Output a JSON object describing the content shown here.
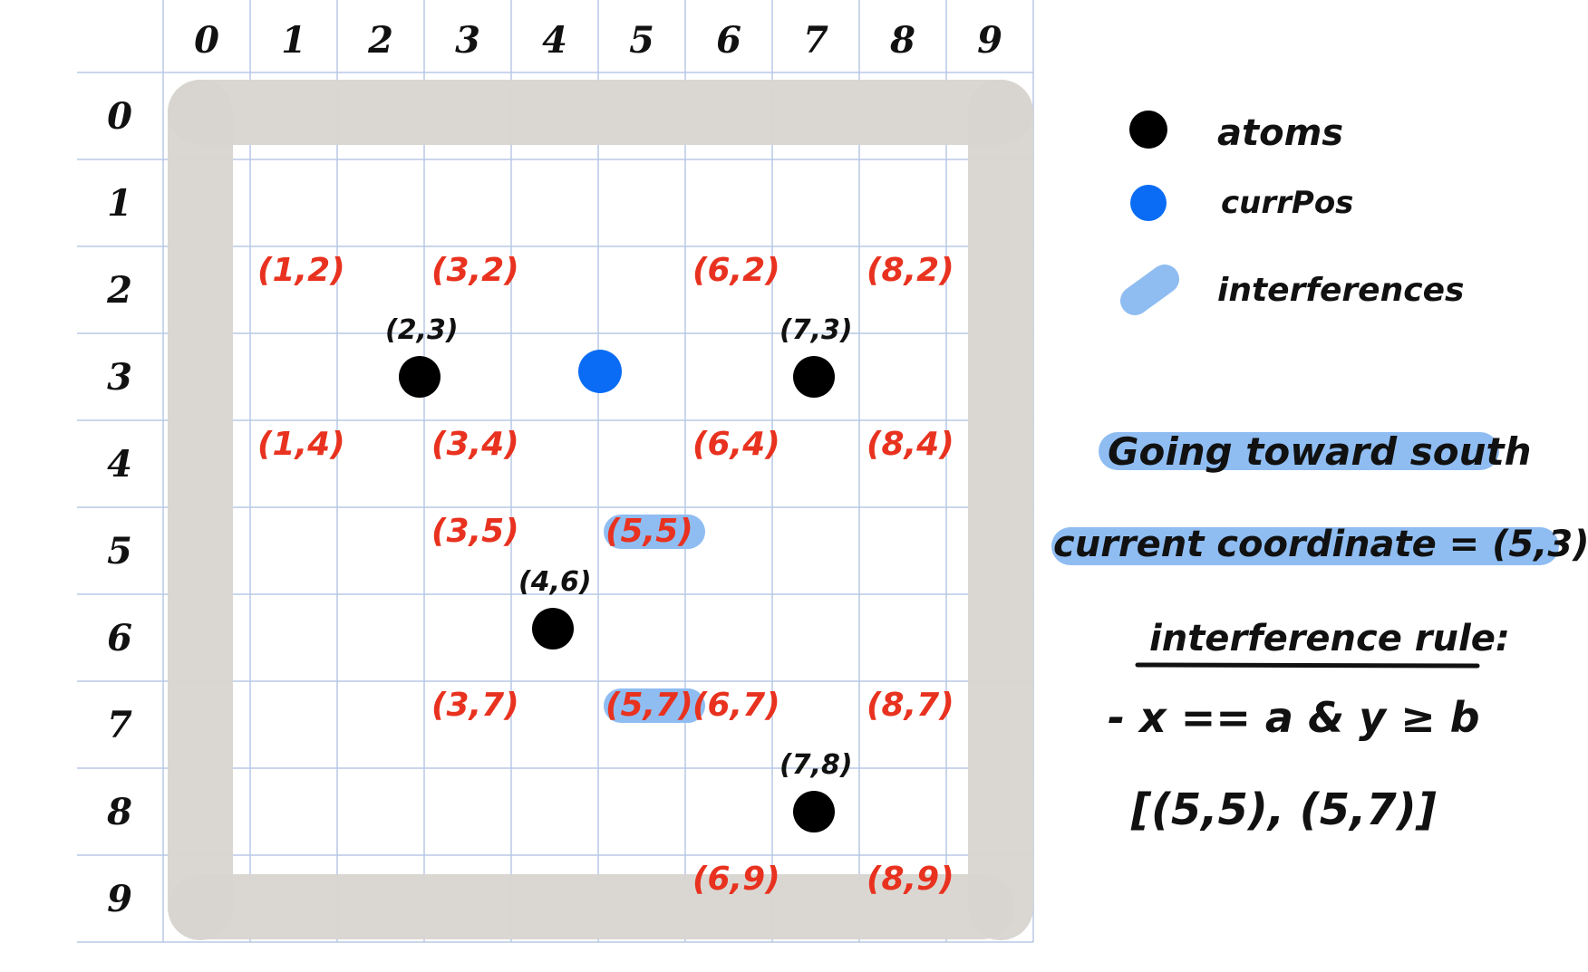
{
  "grid": {
    "col_labels": [
      "0",
      "1",
      "2",
      "3",
      "4",
      "5",
      "6",
      "7",
      "8",
      "9"
    ],
    "row_labels": [
      "0",
      "1",
      "2",
      "3",
      "4",
      "5",
      "6",
      "7",
      "8",
      "9"
    ]
  },
  "colors": {
    "atom": "#000000",
    "curr_pos": "#0a6cf5",
    "interference_highlight": "#8fbdf2",
    "wall": "#d8d5d0",
    "red_label": "#e8321f",
    "grid_line": "#b8c8e6"
  },
  "atoms": [
    {
      "label": "(2,3)",
      "x": 2,
      "y": 3
    },
    {
      "label": "(7,3)",
      "x": 7,
      "y": 3
    },
    {
      "label": "(4,6)",
      "x": 4,
      "y": 6
    },
    {
      "label": "(7,8)",
      "x": 7,
      "y": 8
    }
  ],
  "curr_pos": {
    "x": 5,
    "y": 3
  },
  "candidate_labels": [
    {
      "text": "(1,2)",
      "x": 1,
      "y": 2,
      "highlight": false
    },
    {
      "text": "(3,2)",
      "x": 3,
      "y": 2,
      "highlight": false
    },
    {
      "text": "(6,2)",
      "x": 6,
      "y": 2,
      "highlight": false
    },
    {
      "text": "(8,2)",
      "x": 8,
      "y": 2,
      "highlight": false
    },
    {
      "text": "(1,4)",
      "x": 1,
      "y": 4,
      "highlight": false
    },
    {
      "text": "(3,4)",
      "x": 3,
      "y": 4,
      "highlight": false
    },
    {
      "text": "(6,4)",
      "x": 6,
      "y": 4,
      "highlight": false
    },
    {
      "text": "(8,4)",
      "x": 8,
      "y": 4,
      "highlight": false
    },
    {
      "text": "(3,5)",
      "x": 3,
      "y": 5,
      "highlight": false
    },
    {
      "text": "(5,5)",
      "x": 5,
      "y": 5,
      "highlight": true
    },
    {
      "text": "(3,7)",
      "x": 3,
      "y": 7,
      "highlight": false
    },
    {
      "text": "(5,7)",
      "x": 5,
      "y": 7,
      "highlight": true
    },
    {
      "text": "(6,7)",
      "x": 6,
      "y": 7,
      "highlight": false
    },
    {
      "text": "(8,7)",
      "x": 8,
      "y": 7,
      "highlight": false
    },
    {
      "text": "(6,9)",
      "x": 6,
      "y": 9,
      "highlight": false
    },
    {
      "text": "(8,9)",
      "x": 8,
      "y": 9,
      "highlight": false
    }
  ],
  "legend": {
    "atoms": "atoms",
    "curr_pos": "currPos",
    "interferences": "interferences"
  },
  "notes": {
    "direction": "Going toward south",
    "current_coordinate": "current coordinate = (5,3)",
    "rule_title": "interference rule:",
    "rule": "- x == a & y ≥ b",
    "result": "[(5,5), (5,7)]"
  }
}
